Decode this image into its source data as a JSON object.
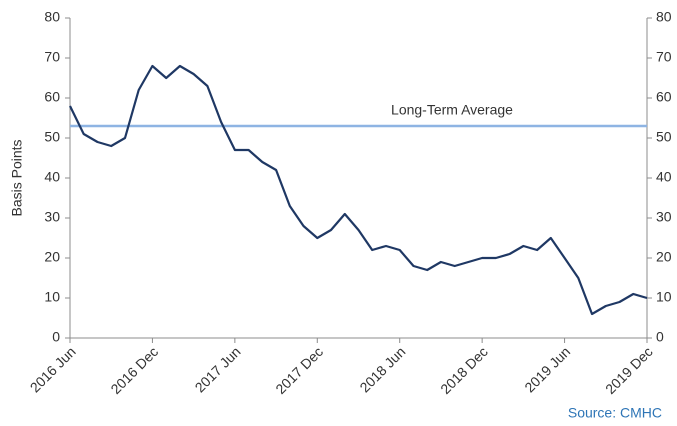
{
  "chart_data": {
    "type": "line",
    "y_label": "Basis Points",
    "source": "Source: CMHC",
    "x": [
      "2016 Jun",
      "2016 Jul",
      "2016 Aug",
      "2016 Sep",
      "2016 Oct",
      "2016 Nov",
      "2016 Dec",
      "2017 Jan",
      "2017 Feb",
      "2017 Mar",
      "2017 Apr",
      "2017 May",
      "2017 Jun",
      "2017 Jul",
      "2017 Aug",
      "2017 Sep",
      "2017 Oct",
      "2017 Nov",
      "2017 Dec",
      "2018 Jan",
      "2018 Feb",
      "2018 Mar",
      "2018 Apr",
      "2018 May",
      "2018 Jun",
      "2018 Jul",
      "2018 Aug",
      "2018 Sep",
      "2018 Oct",
      "2018 Nov",
      "2018 Dec",
      "2019 Jan",
      "2019 Feb",
      "2019 Mar",
      "2019 Apr",
      "2019 May",
      "2019 Jun",
      "2019 Jul",
      "2019 Aug",
      "2019 Sep",
      "2019 Oct",
      "2019 Nov",
      "2019 Dec"
    ],
    "series": [
      {
        "color": "#1f3864",
        "values": [
          58,
          51,
          49,
          48,
          50,
          62,
          68,
          65,
          68,
          66,
          63,
          54,
          47,
          47,
          44,
          42,
          33,
          28,
          25,
          27,
          31,
          27,
          22,
          23,
          22,
          18,
          17,
          19,
          18,
          19,
          20,
          20,
          21,
          23,
          22,
          25,
          20,
          15,
          6,
          8,
          9,
          11,
          10
        ]
      }
    ],
    "xticks": [
      "2016 Jun",
      "2016 Dec",
      "2017 Jun",
      "2017 Dec",
      "2018 Jun",
      "2018 Dec",
      "2019 Jun",
      "2019 Dec"
    ],
    "ylim": [
      0,
      80
    ],
    "yticks": [
      0,
      10,
      20,
      30,
      40,
      50,
      60,
      70,
      80
    ],
    "y2lim": [
      0,
      80
    ],
    "y2ticks": [
      0,
      10,
      20,
      30,
      40,
      50,
      60,
      70,
      80
    ],
    "reference_line": {
      "value": 53,
      "label": "Long-Term Average",
      "color": "#8eb4e3"
    }
  }
}
